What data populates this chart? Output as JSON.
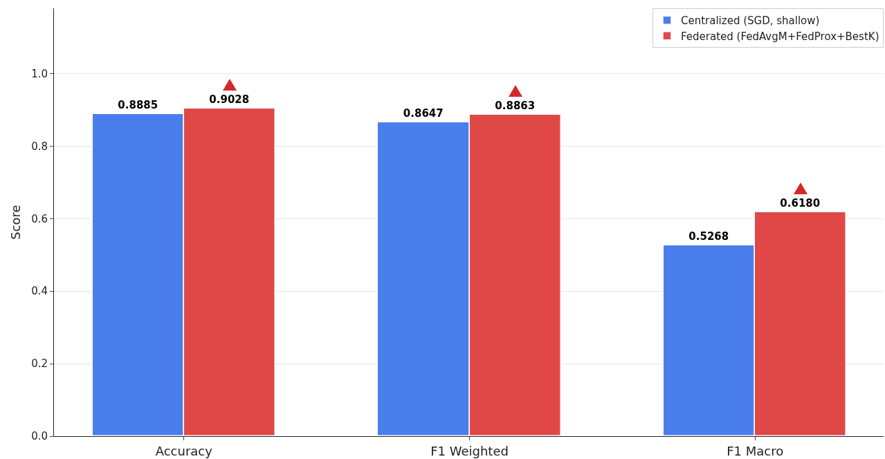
{
  "chart_data": {
    "type": "bar",
    "ylabel": "Score",
    "categories": [
      "Accuracy",
      "F1 Weighted",
      "F1 Macro"
    ],
    "series": [
      {
        "name": "Centralized (SGD, shallow)",
        "color": "#4a7eed",
        "values": [
          0.8885,
          0.8647,
          0.5268
        ],
        "value_labels": [
          "0.8885",
          "0.8647",
          "0.5268"
        ]
      },
      {
        "name": "Federated (FedAvgM+FedProx+BestK)",
        "color": "#e04848",
        "values": [
          0.9028,
          0.8863,
          0.618
        ],
        "value_labels": [
          "0.9028",
          "0.8863",
          "0.6180"
        ]
      }
    ],
    "ylim": [
      0,
      1.18
    ],
    "yticks": [
      {
        "value": 0,
        "label": "0.0"
      },
      0.2,
      0.4,
      0.6,
      0.8,
      {
        "value": 1,
        "label": "1.0"
      }
    ],
    "grid": "y",
    "legend": "top right"
  }
}
